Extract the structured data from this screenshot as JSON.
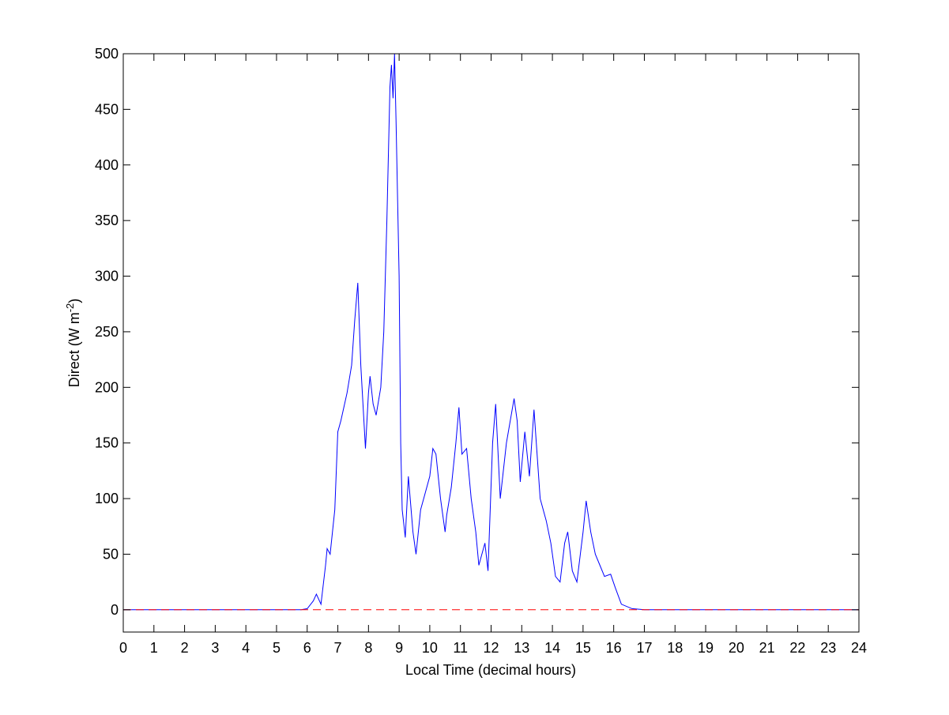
{
  "chart_data": {
    "type": "line",
    "title": "",
    "xlabel": "Local Time (decimal hours)",
    "ylabel_main": "Direct (W m",
    "ylabel_sup": "-2",
    "ylabel_end": ")",
    "xlim": [
      0,
      24
    ],
    "ylim": [
      -20,
      500
    ],
    "xticks": [
      0,
      1,
      2,
      3,
      4,
      5,
      6,
      7,
      8,
      9,
      10,
      11,
      12,
      13,
      14,
      15,
      16,
      17,
      18,
      19,
      20,
      21,
      22,
      23,
      24
    ],
    "yticks": [
      0,
      50,
      100,
      150,
      200,
      250,
      300,
      350,
      400,
      450,
      500
    ],
    "grid": false,
    "series": [
      {
        "color": "#0000ff",
        "x": [
          0,
          5.8,
          6.0,
          6.2,
          6.3,
          6.45,
          6.6,
          6.65,
          6.75,
          6.9,
          7.0,
          7.1,
          7.3,
          7.45,
          7.55,
          7.65,
          7.75,
          7.9,
          8.0,
          8.05,
          8.15,
          8.25,
          8.4,
          8.5,
          8.6,
          8.7,
          8.75,
          8.8,
          8.85,
          8.9,
          9.0,
          9.05,
          9.1,
          9.2,
          9.3,
          9.45,
          9.55,
          9.7,
          9.8,
          10.0,
          10.1,
          10.2,
          10.35,
          10.5,
          10.55,
          10.7,
          10.85,
          10.95,
          11.05,
          11.2,
          11.35,
          11.5,
          11.6,
          11.8,
          11.9,
          12.05,
          12.15,
          12.3,
          12.5,
          12.75,
          12.85,
          12.95,
          13.1,
          13.25,
          13.4,
          13.5,
          13.6,
          13.8,
          13.95,
          14.1,
          14.25,
          14.4,
          14.5,
          14.65,
          14.8,
          15.0,
          15.1,
          15.25,
          15.4,
          15.55,
          15.7,
          15.9,
          16.05,
          16.25,
          16.6,
          17.0,
          24
        ],
        "y": [
          0,
          0,
          1,
          8,
          14,
          5,
          40,
          55,
          50,
          90,
          160,
          170,
          195,
          220,
          260,
          294,
          220,
          145,
          195,
          210,
          185,
          175,
          200,
          250,
          350,
          470,
          490,
          460,
          500,
          440,
          300,
          150,
          90,
          65,
          120,
          70,
          50,
          90,
          100,
          120,
          145,
          140,
          100,
          70,
          85,
          110,
          150,
          182,
          140,
          145,
          100,
          70,
          40,
          60,
          35,
          150,
          185,
          100,
          150,
          190,
          170,
          115,
          160,
          120,
          180,
          140,
          100,
          80,
          60,
          30,
          25,
          60,
          70,
          35,
          25,
          70,
          98,
          70,
          50,
          40,
          30,
          32,
          20,
          5,
          1,
          0,
          0
        ]
      },
      {
        "color": "#ff0000",
        "style": "dashed",
        "x": [
          0,
          24
        ],
        "y": [
          0,
          0
        ]
      }
    ]
  }
}
